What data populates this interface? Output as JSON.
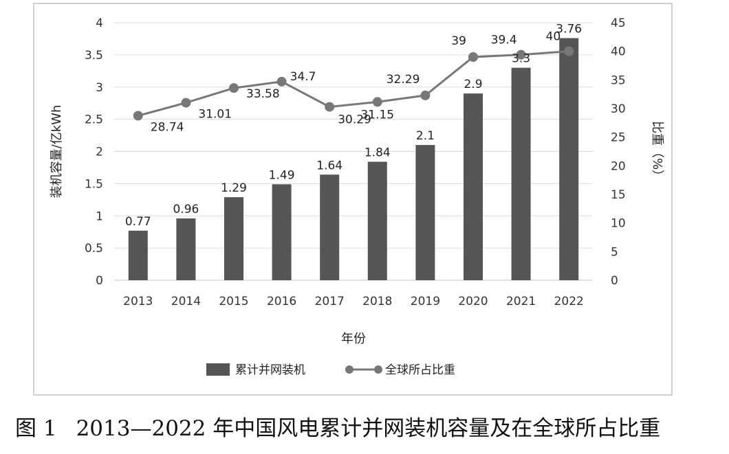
{
  "caption": {
    "figure_label": "图 1",
    "text": "2013—2022 年中国风电累计并网装机容量及在全球所占比重"
  },
  "chart_data": {
    "type": "bar",
    "categories": [
      "2013",
      "2014",
      "2015",
      "2016",
      "2017",
      "2018",
      "2019",
      "2020",
      "2021",
      "2022"
    ],
    "xlabel": "年份",
    "ylabel": "装机容量/亿kWh",
    "y2label": "比重（%）",
    "ylim": [
      0,
      4
    ],
    "yticks": [
      "0",
      "0.5",
      "1",
      "1.5",
      "2",
      "2.5",
      "3",
      "3.5",
      "4"
    ],
    "y2lim": [
      0,
      45
    ],
    "y2ticks": [
      "0",
      "5",
      "10",
      "15",
      "20",
      "25",
      "30",
      "35",
      "40",
      "45"
    ],
    "grid": true,
    "legend_position": "bottom",
    "series": [
      {
        "name": "累计并网装机",
        "kind": "bar",
        "axis": "left",
        "color": "#555555",
        "values": [
          0.77,
          0.96,
          1.29,
          1.49,
          1.64,
          1.84,
          2.1,
          2.9,
          3.3,
          3.76
        ],
        "labels": [
          "0.77",
          "0.96",
          "1.29",
          "1.49",
          "1.64",
          "1.84",
          "2.1",
          "2.9",
          "3.3",
          "3.76"
        ]
      },
      {
        "name": "全球所占比重",
        "kind": "line",
        "axis": "right",
        "color": "#777777",
        "values": [
          28.74,
          31.01,
          33.58,
          34.7,
          30.29,
          31.15,
          32.29,
          39,
          39.4,
          40
        ],
        "labels": [
          "28.74",
          "31.01",
          "33.58",
          "34.7",
          "30.29",
          "31.15",
          "32.29",
          "39",
          "39.4",
          "40"
        ]
      }
    ]
  }
}
